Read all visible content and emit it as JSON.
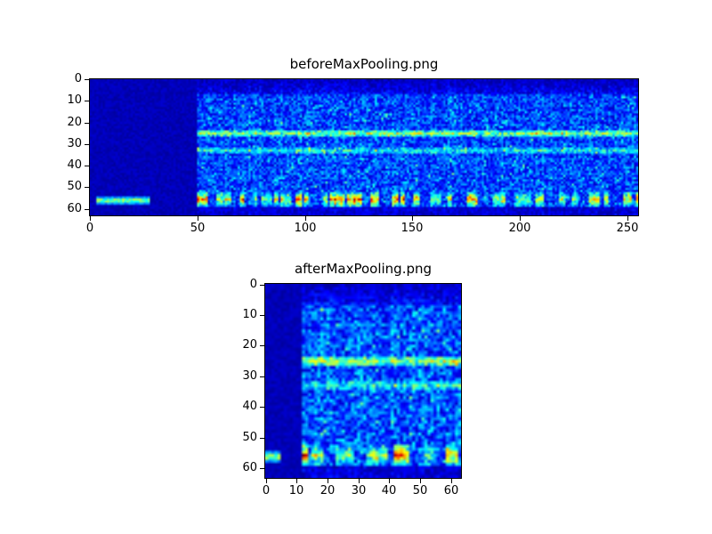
{
  "figure": {
    "background": "#ffffff",
    "frame_color": "#000000",
    "text_color": "#000000"
  },
  "chart_data": [
    {
      "type": "heatmap",
      "title": "beforeMaxPooling.png",
      "xlabel": "",
      "ylabel": "",
      "colormap": "jet",
      "grid": false,
      "y_inverted": true,
      "x_range": [
        0,
        255
      ],
      "y_range": [
        0,
        63
      ],
      "xticks": [
        0,
        50,
        100,
        150,
        200,
        250
      ],
      "yticks": [
        0,
        10,
        20,
        30,
        40,
        50,
        60
      ],
      "features": [
        "dark near-silent region for columns 0-49 with one bright horizontal streak near row 57 spanning columns ~3-27",
        "noisy low-intensity blue spectrogram field for columns 50-255",
        "bright cyan-green horizontal band near row 25",
        "weaker cyan band near row 33",
        "strong intermittent yellow/red energy blobs along rows 54-58",
        "darker rows at the very top (0-7) and very bottom (60-63)"
      ],
      "render": {
        "cols": 256,
        "rows": 64,
        "seed": 42,
        "dark_cols_end": 50,
        "streak": {
          "rows": [
            55,
            58
          ],
          "cols": [
            3,
            27
          ],
          "intensity": 0.6
        },
        "bands": [
          {
            "row": 25,
            "half_width": 1,
            "intensity": 0.45
          },
          {
            "row": 33,
            "half_width": 1,
            "intensity": 0.27
          }
        ],
        "hot_band": {
          "rows": [
            53,
            59
          ],
          "peak_row": 56,
          "intensity": 0.95
        },
        "top_dark_rows": 7,
        "bottom_dark_row": 60,
        "base": 0.07,
        "noise": 0.22
      }
    },
    {
      "type": "heatmap",
      "title": "afterMaxPooling.png",
      "xlabel": "",
      "ylabel": "",
      "colormap": "jet",
      "grid": false,
      "y_inverted": true,
      "x_range": [
        0,
        63
      ],
      "y_range": [
        0,
        63
      ],
      "xticks": [
        0,
        10,
        20,
        30,
        40,
        50,
        60
      ],
      "yticks": [
        0,
        10,
        20,
        30,
        40,
        50,
        60
      ],
      "features": [
        "dark near-silent region for columns 0-11 with one bright streak near row 57 spanning columns ~0-4",
        "noisy low-intensity blue spectrogram field for columns 12-63",
        "bright cyan-green horizontal band near row 25",
        "weaker cyan band near row 33",
        "strong yellow/red energy blobs along rows 54-58",
        "darker rows at the very top (0-7) and very bottom (60-63)"
      ],
      "render": {
        "cols": 64,
        "rows": 64,
        "seed": 7,
        "dark_cols_end": 12,
        "streak": {
          "rows": [
            55,
            58
          ],
          "cols": [
            0,
            4
          ],
          "intensity": 0.6
        },
        "bands": [
          {
            "row": 25,
            "half_width": 1,
            "intensity": 0.45
          },
          {
            "row": 33,
            "half_width": 1,
            "intensity": 0.27
          }
        ],
        "hot_band": {
          "rows": [
            53,
            59
          ],
          "peak_row": 56,
          "intensity": 0.95
        },
        "top_dark_rows": 7,
        "bottom_dark_row": 60,
        "base": 0.07,
        "noise": 0.24
      }
    }
  ]
}
